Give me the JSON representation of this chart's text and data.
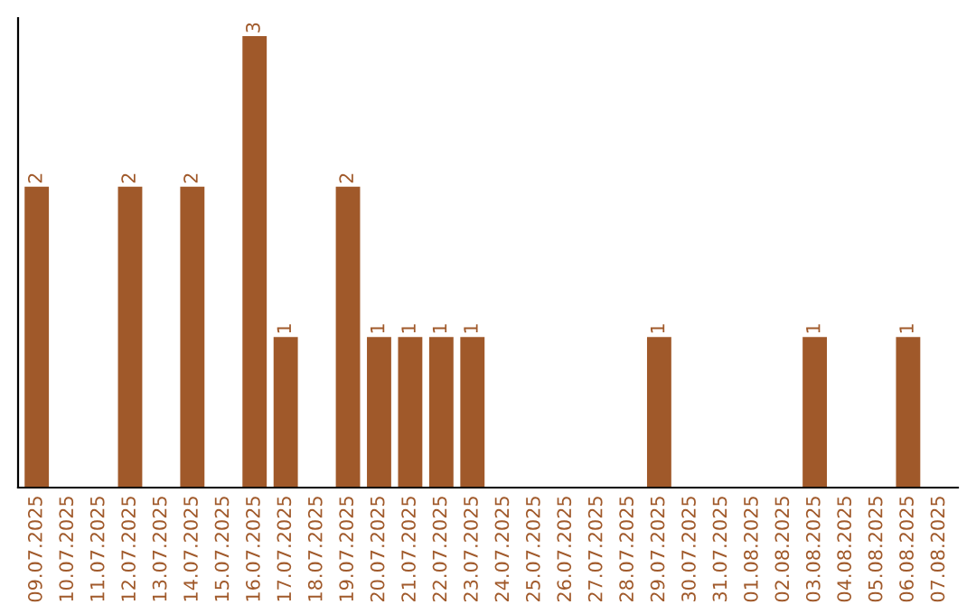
{
  "chart_data": {
    "type": "bar",
    "categories": [
      "09.07.2025",
      "10.07.2025",
      "11.07.2025",
      "12.07.2025",
      "13.07.2025",
      "14.07.2025",
      "15.07.2025",
      "16.07.2025",
      "17.07.2025",
      "18.07.2025",
      "19.07.2025",
      "20.07.2025",
      "21.07.2025",
      "22.07.2025",
      "23.07.2025",
      "24.07.2025",
      "25.07.2025",
      "26.07.2025",
      "27.07.2025",
      "28.07.2025",
      "29.07.2025",
      "30.07.2025",
      "31.07.2025",
      "01.08.2025",
      "02.08.2025",
      "03.08.2025",
      "04.08.2025",
      "05.08.2025",
      "06.08.2025",
      "07.08.2025"
    ],
    "values": [
      2,
      null,
      null,
      2,
      null,
      2,
      null,
      3,
      1,
      null,
      2,
      1,
      1,
      1,
      1,
      null,
      null,
      null,
      null,
      null,
      1,
      null,
      null,
      null,
      null,
      1,
      null,
      null,
      1,
      null
    ],
    "value_labels": [
      "2",
      null,
      null,
      "2",
      null,
      "2",
      null,
      "3",
      "1",
      null,
      "2",
      "1",
      "1",
      "1",
      "1",
      null,
      null,
      null,
      null,
      null,
      "1",
      null,
      null,
      null,
      null,
      "1",
      null,
      null,
      "1",
      null
    ],
    "color": "#a0592a",
    "grid": false,
    "legend": false,
    "tick_labels": "x"
  }
}
